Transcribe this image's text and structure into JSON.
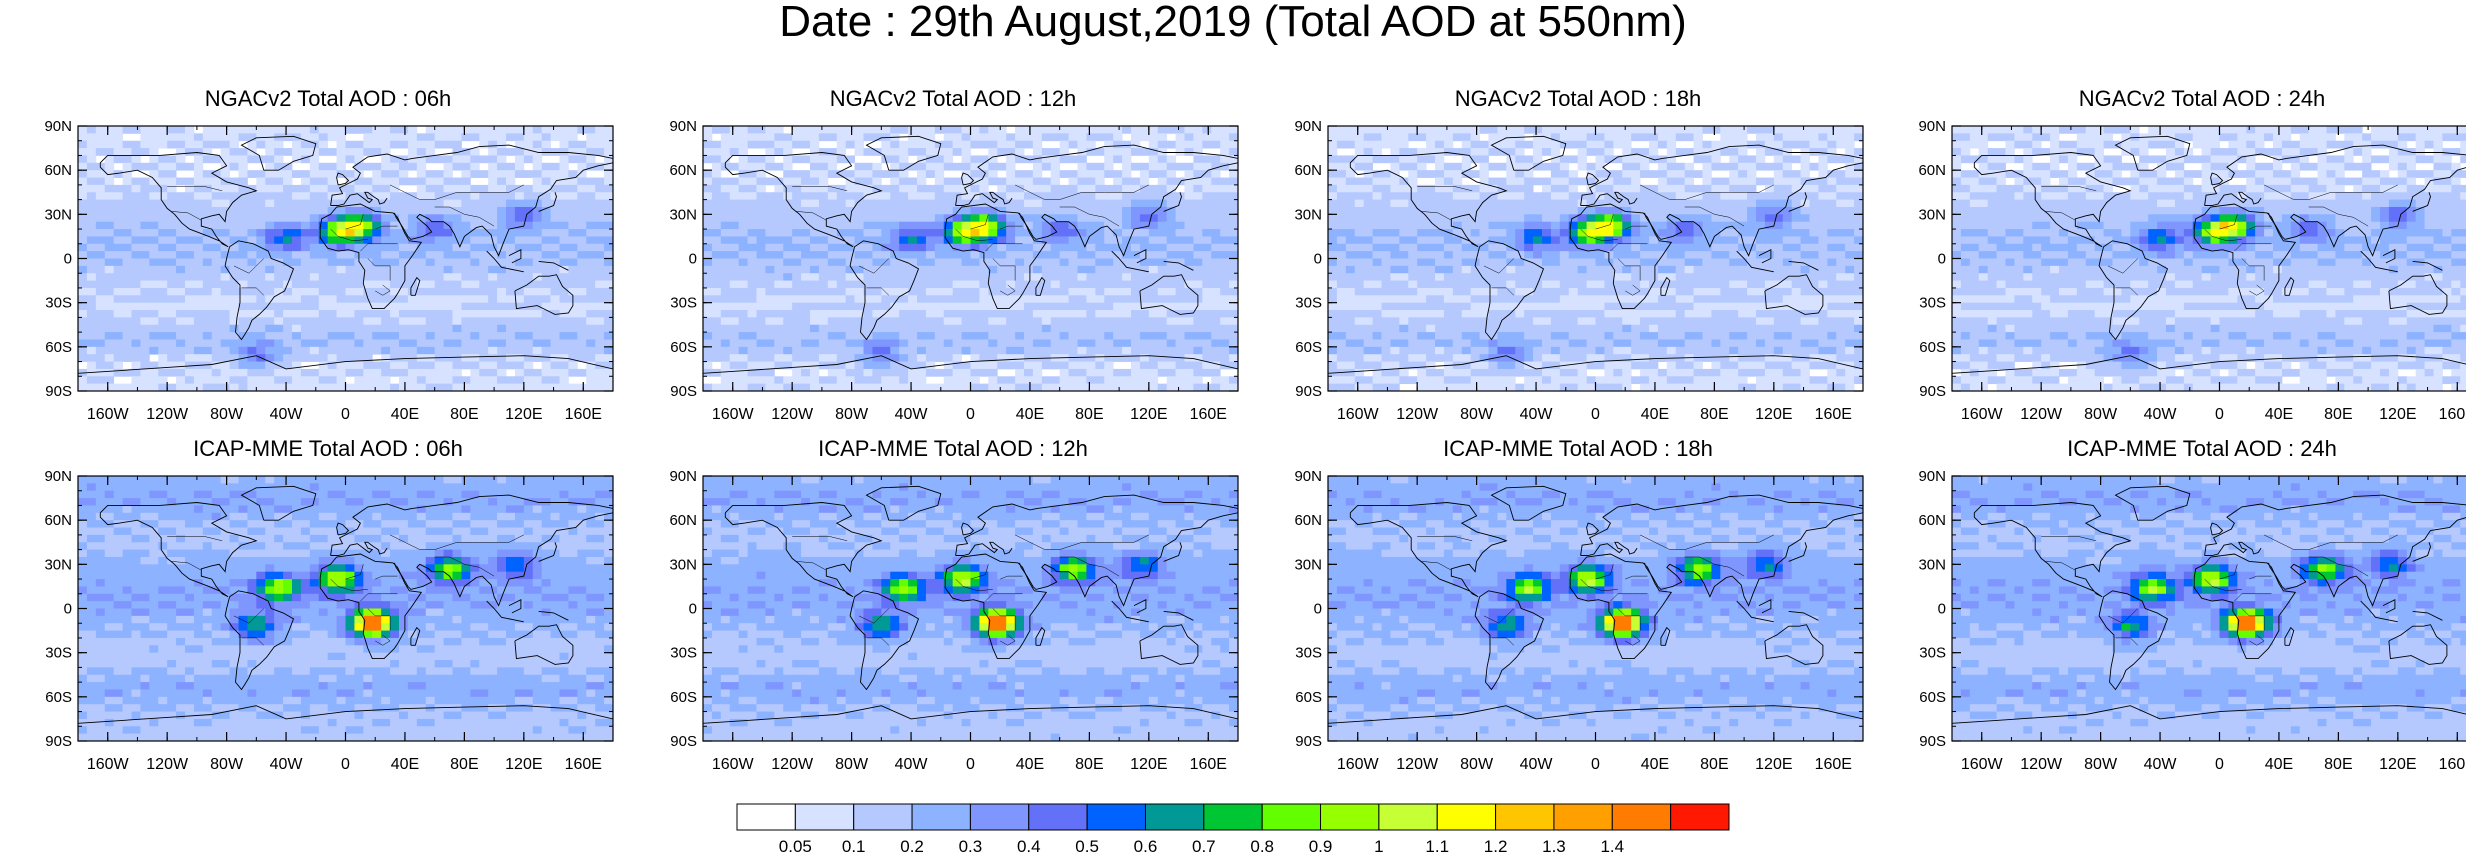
{
  "title": "Date : 29th August,2019 (Total AOD at 550nm)",
  "panels": [
    {
      "title": "NGACv2 Total AOD : 06h",
      "model": "NGACv2",
      "hour": "06h"
    },
    {
      "title": "NGACv2 Total AOD : 12h",
      "model": "NGACv2",
      "hour": "12h"
    },
    {
      "title": "NGACv2 Total AOD : 18h",
      "model": "NGACv2",
      "hour": "18h"
    },
    {
      "title": "NGACv2 Total AOD : 24h",
      "model": "NGACv2",
      "hour": "24h"
    },
    {
      "title": "ICAP-MME Total AOD : 06h",
      "model": "ICAP-MME",
      "hour": "06h"
    },
    {
      "title": "ICAP-MME Total AOD : 12h",
      "model": "ICAP-MME",
      "hour": "12h"
    },
    {
      "title": "ICAP-MME Total AOD : 18h",
      "model": "ICAP-MME",
      "hour": "18h"
    },
    {
      "title": "ICAP-MME Total AOD : 24h",
      "model": "ICAP-MME",
      "hour": "24h"
    }
  ],
  "axes": {
    "lon_ticks": [
      "160W",
      "120W",
      "80W",
      "40W",
      "0",
      "40E",
      "80E",
      "120E",
      "160E"
    ],
    "lon_values": [
      -160,
      -120,
      -80,
      -40,
      0,
      40,
      80,
      120,
      160
    ],
    "lat_ticks": [
      "90N",
      "60N",
      "30N",
      "0",
      "30S",
      "60S",
      "90S"
    ],
    "lat_values": [
      90,
      60,
      30,
      0,
      -30,
      -60,
      -90
    ],
    "lon_range": [
      -180,
      180
    ],
    "lat_range": [
      -90,
      90
    ]
  },
  "colorbar": {
    "labels": [
      "0.05",
      "0.1",
      "0.2",
      "0.3",
      "0.4",
      "0.5",
      "0.6",
      "0.7",
      "0.8",
      "0.9",
      "1",
      "1.1",
      "1.2",
      "1.3",
      "1.4"
    ],
    "colors": [
      "#ffffff",
      "#d6e2ff",
      "#b5c9ff",
      "#8db2ff",
      "#7f96ff",
      "#6370f8",
      "#0063ff",
      "#009996",
      "#00c633",
      "#63ff00",
      "#96ff00",
      "#c6ff33",
      "#ffff00",
      "#ffc600",
      "#ffa000",
      "#ff7c00",
      "#ff1900"
    ]
  },
  "hotspots": {
    "ngac": [
      {
        "lon": 10,
        "lat": 22,
        "aod": 0.8
      },
      {
        "lon": -5,
        "lat": 18,
        "aod": 0.7
      },
      {
        "lon": -40,
        "lat": 14,
        "aod": 0.4
      },
      {
        "lon": 60,
        "lat": 20,
        "aod": 0.3
      },
      {
        "lon": 120,
        "lat": 30,
        "aod": 0.3
      },
      {
        "lon": -60,
        "lat": -65,
        "aod": 0.3
      }
    ],
    "icap": [
      {
        "lon": 18,
        "lat": -10,
        "aod": 1.4
      },
      {
        "lon": -5,
        "lat": 20,
        "aod": 0.8
      },
      {
        "lon": -45,
        "lat": 14,
        "aod": 0.7
      },
      {
        "lon": 70,
        "lat": 27,
        "aod": 0.7
      },
      {
        "lon": -60,
        "lat": -12,
        "aod": 0.5
      },
      {
        "lon": 115,
        "lat": 30,
        "aod": 0.4
      }
    ]
  }
}
